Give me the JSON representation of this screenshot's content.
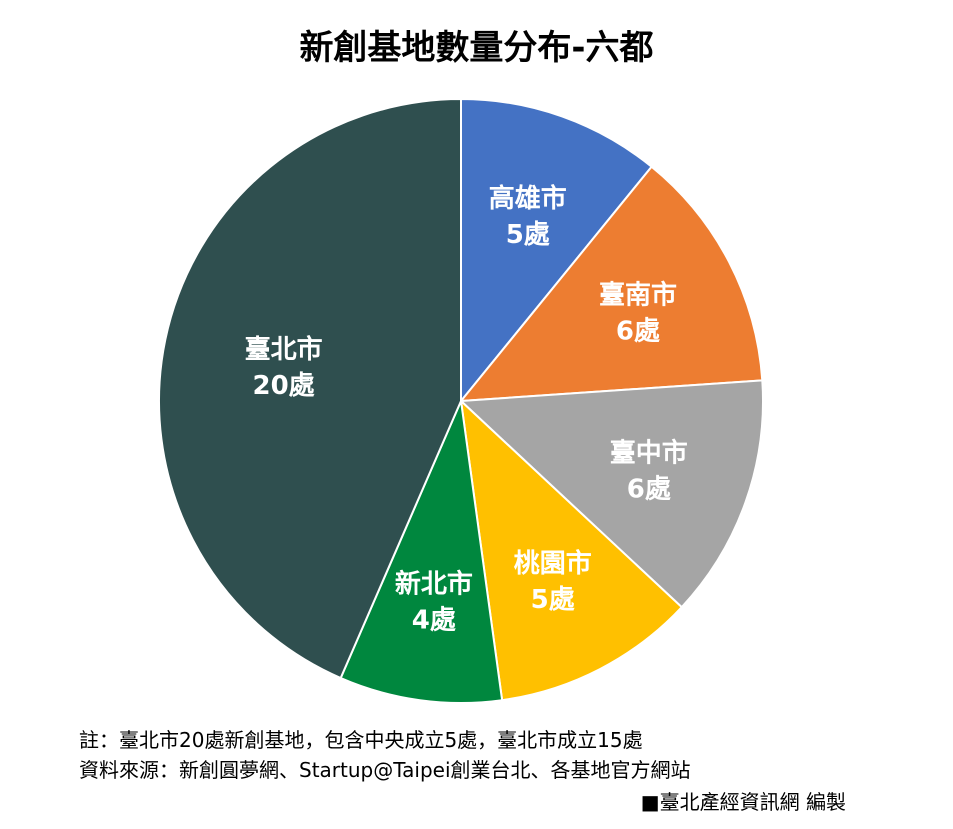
{
  "chart_data": {
    "type": "pie",
    "title": "新創基地數量分布-六都",
    "slices": [
      {
        "name": "高雄市",
        "value": 5,
        "label": "5處",
        "color": "#4472C4"
      },
      {
        "name": "臺南市",
        "value": 6,
        "label": "6處",
        "color": "#ED7D31"
      },
      {
        "name": "臺中市",
        "value": 6,
        "label": "6處",
        "color": "#A5A5A5"
      },
      {
        "name": "桃園市",
        "value": 5,
        "label": "5處",
        "color": "#FFC000"
      },
      {
        "name": "新北市",
        "value": 4,
        "label": "4處",
        "color": "#00873E"
      },
      {
        "name": "臺北市",
        "value": 20,
        "label": "20處",
        "color": "#2F4F4F"
      }
    ],
    "legend": "none"
  },
  "footer": {
    "note": "註：臺北市20處新創基地，包含中央成立5處，臺北市成立15處",
    "source": "資料來源：新創圓夢網、Startup@Taipei創業台北、各基地官方網站",
    "credit": "■臺北產經資訊網 編製"
  }
}
